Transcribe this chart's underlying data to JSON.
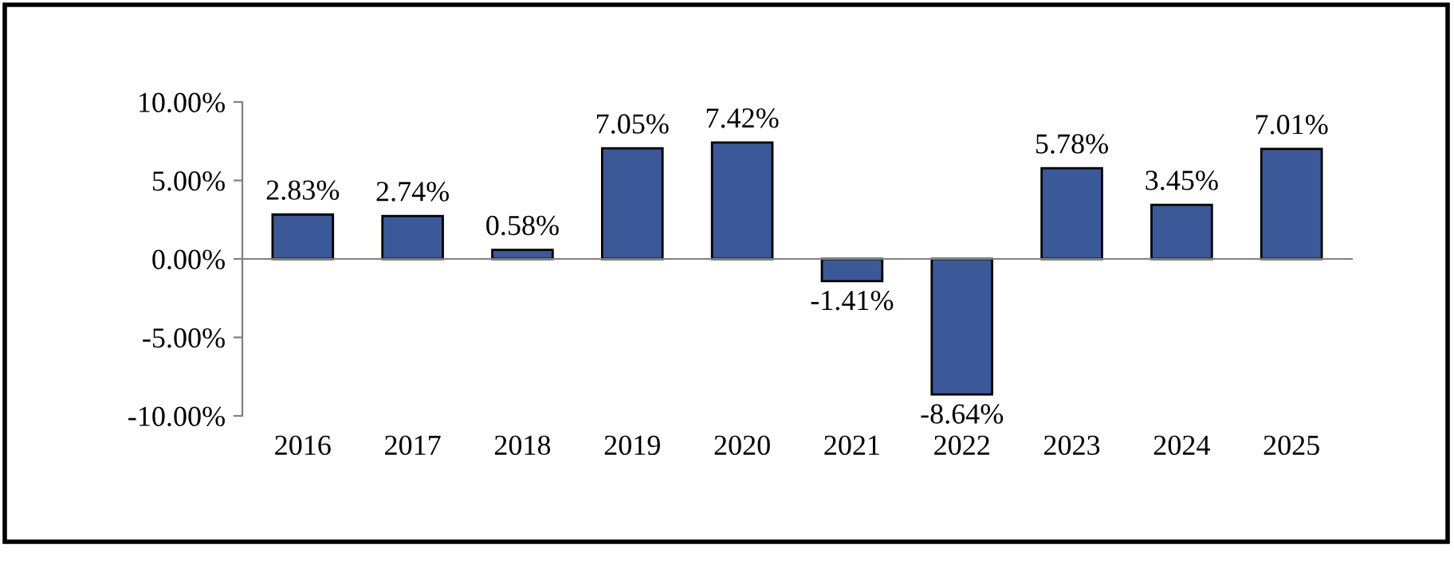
{
  "chart_data": {
    "type": "bar",
    "categories": [
      "2016",
      "2017",
      "2018",
      "2019",
      "2020",
      "2021",
      "2022",
      "2023",
      "2024",
      "2025"
    ],
    "values": [
      2.83,
      2.74,
      0.58,
      7.05,
      7.42,
      -1.41,
      -8.64,
      5.78,
      3.45,
      7.01
    ],
    "value_labels": [
      "2.83%",
      "2.74%",
      "0.58%",
      "7.05%",
      "7.42%",
      "-1.41%",
      "-8.64%",
      "5.78%",
      "3.45%",
      "7.01%"
    ],
    "color": "#3b5998",
    "ylim": [
      -10,
      10
    ],
    "yticks": [
      {
        "value": -10,
        "label": "-10.00%"
      },
      {
        "value": -5,
        "label": "-5.00%"
      },
      {
        "value": 0,
        "label": "0.00%"
      },
      {
        "value": 5,
        "label": "5.00%"
      },
      {
        "value": 10,
        "label": "10.00%"
      }
    ],
    "legend": false
  }
}
